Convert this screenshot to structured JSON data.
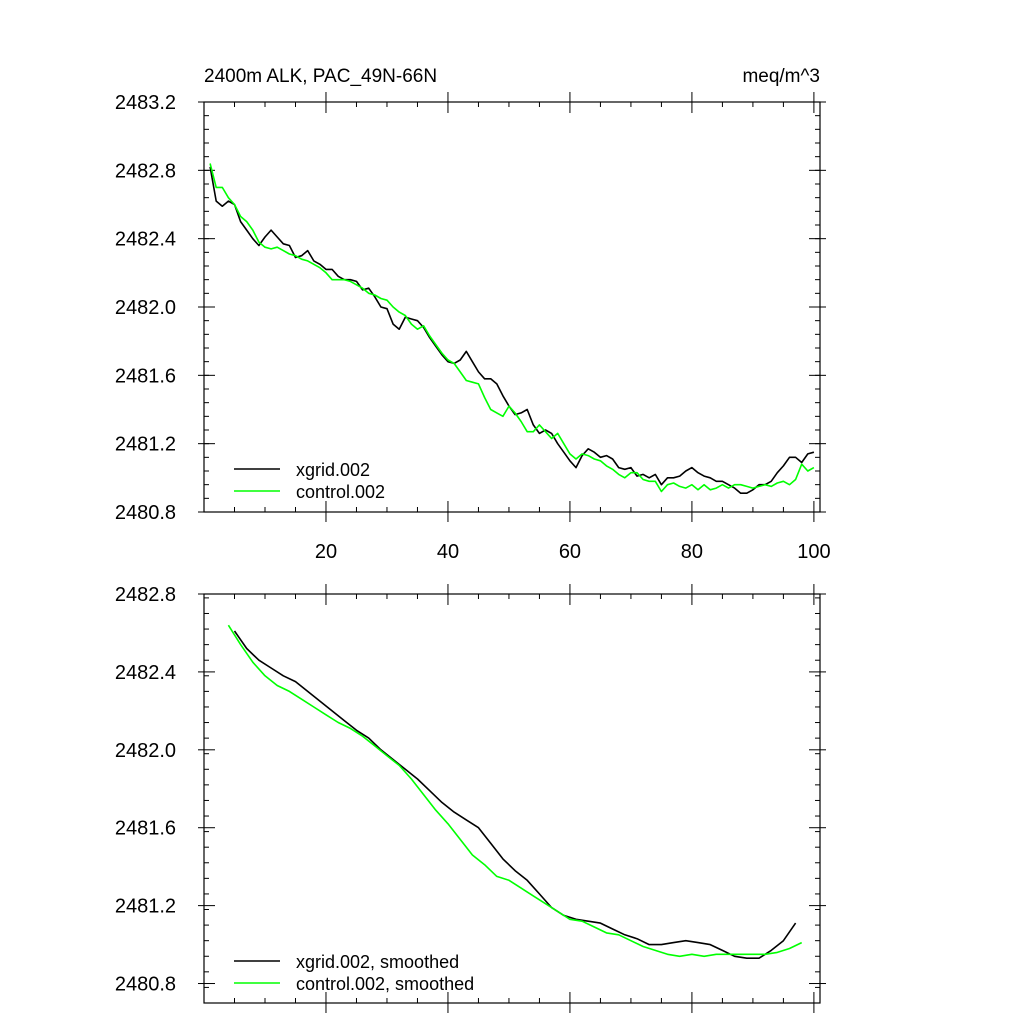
{
  "chart_data": [
    {
      "type": "line",
      "title": "2400m ALK, PAC_49N-66N",
      "units_label": "meq/m^3",
      "xlim": [
        0,
        101
      ],
      "ylim": [
        2480.8,
        2483.2
      ],
      "x_ticks": [
        20,
        40,
        60,
        80,
        100
      ],
      "x_tick_labels": [
        "20",
        "40",
        "60",
        "80",
        "100"
      ],
      "y_ticks": [
        2480.8,
        2481.2,
        2481.6,
        2482.0,
        2482.4,
        2482.8,
        2483.2
      ],
      "y_tick_labels": [
        "2480.8",
        "2481.2",
        "2481.6",
        "2482.0",
        "2482.4",
        "2482.8",
        "2483.2"
      ],
      "legend_position": "bottom-left",
      "series": [
        {
          "name": "xgrid.002",
          "color": "#000000",
          "x": [
            1,
            2,
            3,
            4,
            5,
            6,
            7,
            8,
            9,
            10,
            11,
            12,
            13,
            14,
            15,
            16,
            17,
            18,
            19,
            20,
            21,
            22,
            23,
            24,
            25,
            26,
            27,
            28,
            29,
            30,
            31,
            32,
            33,
            34,
            35,
            36,
            37,
            38,
            39,
            40,
            41,
            42,
            43,
            44,
            45,
            46,
            47,
            48,
            49,
            50,
            51,
            52,
            53,
            54,
            55,
            56,
            57,
            58,
            59,
            60,
            61,
            62,
            63,
            64,
            65,
            66,
            67,
            68,
            69,
            70,
            71,
            72,
            73,
            74,
            75,
            76,
            77,
            78,
            79,
            80,
            81,
            82,
            83,
            84,
            85,
            86,
            87,
            88,
            89,
            90,
            91,
            92,
            93,
            94,
            95,
            96,
            97,
            98,
            99,
            100
          ],
          "values": [
            2482.82,
            2482.62,
            2482.59,
            2482.62,
            2482.6,
            2482.5,
            2482.45,
            2482.4,
            2482.36,
            2482.41,
            2482.45,
            2482.41,
            2482.37,
            2482.36,
            2482.29,
            2482.3,
            2482.33,
            2482.27,
            2482.25,
            2482.22,
            2482.22,
            2482.18,
            2482.16,
            2482.16,
            2482.15,
            2482.1,
            2482.11,
            2482.06,
            2482.0,
            2481.99,
            2481.9,
            2481.87,
            2481.94,
            2481.93,
            2481.92,
            2481.88,
            2481.82,
            2481.77,
            2481.72,
            2481.68,
            2481.67,
            2481.69,
            2481.74,
            2481.68,
            2481.62,
            2481.58,
            2481.58,
            2481.55,
            2481.48,
            2481.42,
            2481.37,
            2481.38,
            2481.4,
            2481.31,
            2481.26,
            2481.28,
            2481.26,
            2481.2,
            2481.15,
            2481.1,
            2481.06,
            2481.13,
            2481.17,
            2481.15,
            2481.12,
            2481.13,
            2481.11,
            2481.06,
            2481.05,
            2481.06,
            2481.01,
            2481.02,
            2481.0,
            2481.02,
            2480.96,
            2481.0,
            2481.0,
            2481.01,
            2481.04,
            2481.06,
            2481.03,
            2481.01,
            2481.0,
            2480.98,
            2480.98,
            2480.96,
            2480.94,
            2480.91,
            2480.91,
            2480.93,
            2480.96,
            2480.96,
            2480.98,
            2481.03,
            2481.07,
            2481.12,
            2481.12,
            2481.09,
            2481.14,
            2481.15
          ]
        },
        {
          "name": "control.002",
          "color": "#00ff00",
          "x": [
            1,
            2,
            3,
            4,
            5,
            6,
            7,
            8,
            9,
            10,
            11,
            12,
            13,
            14,
            15,
            16,
            17,
            18,
            19,
            20,
            21,
            22,
            23,
            24,
            25,
            26,
            27,
            28,
            29,
            30,
            31,
            32,
            33,
            34,
            35,
            36,
            37,
            38,
            39,
            40,
            41,
            42,
            43,
            44,
            45,
            46,
            47,
            48,
            49,
            50,
            51,
            52,
            53,
            54,
            55,
            56,
            57,
            58,
            59,
            60,
            61,
            62,
            63,
            64,
            65,
            66,
            67,
            68,
            69,
            70,
            71,
            72,
            73,
            74,
            75,
            76,
            77,
            78,
            79,
            80,
            81,
            82,
            83,
            84,
            85,
            86,
            87,
            88,
            89,
            90,
            91,
            92,
            93,
            94,
            95,
            96,
            97,
            98,
            99,
            100
          ],
          "values": [
            2482.84,
            2482.7,
            2482.7,
            2482.64,
            2482.6,
            2482.53,
            2482.5,
            2482.45,
            2482.38,
            2482.35,
            2482.34,
            2482.35,
            2482.33,
            2482.31,
            2482.3,
            2482.28,
            2482.27,
            2482.25,
            2482.23,
            2482.2,
            2482.16,
            2482.16,
            2482.16,
            2482.15,
            2482.13,
            2482.11,
            2482.08,
            2482.07,
            2482.05,
            2482.04,
            2482.0,
            2481.97,
            2481.95,
            2481.9,
            2481.87,
            2481.89,
            2481.83,
            2481.78,
            2481.73,
            2481.69,
            2481.67,
            2481.62,
            2481.57,
            2481.56,
            2481.55,
            2481.47,
            2481.4,
            2481.38,
            2481.36,
            2481.42,
            2481.38,
            2481.33,
            2481.27,
            2481.27,
            2481.31,
            2481.27,
            2481.23,
            2481.26,
            2481.2,
            2481.14,
            2481.11,
            2481.14,
            2481.13,
            2481.11,
            2481.1,
            2481.07,
            2481.05,
            2481.02,
            2481.0,
            2481.03,
            2481.03,
            2480.99,
            2480.98,
            2480.98,
            2480.92,
            2480.96,
            2480.97,
            2480.95,
            2480.94,
            2480.96,
            2480.93,
            2480.96,
            2480.93,
            2480.94,
            2480.96,
            2480.94,
            2480.96,
            2480.96,
            2480.95,
            2480.94,
            2480.95,
            2480.96,
            2480.95,
            2480.97,
            2480.98,
            2480.96,
            2480.99,
            2481.08,
            2481.04,
            2481.06
          ]
        }
      ]
    },
    {
      "type": "line",
      "title": "",
      "xlim": [
        0,
        101
      ],
      "ylim": [
        2480.7,
        2482.8
      ],
      "x_ticks": [
        20,
        40,
        60,
        80,
        100
      ],
      "x_tick_labels": [],
      "y_ticks": [
        2480.8,
        2481.2,
        2481.6,
        2482.0,
        2482.4,
        2482.8
      ],
      "y_tick_labels": [
        "2480.8",
        "2481.2",
        "2481.6",
        "2482.0",
        "2482.4",
        "2482.8"
      ],
      "legend_position": "bottom-left",
      "series": [
        {
          "name": "xgrid.002, smoothed",
          "color": "#000000",
          "x": [
            5,
            7,
            9,
            11,
            13,
            15,
            17,
            19,
            21,
            23,
            25,
            27,
            29,
            31,
            33,
            35,
            37,
            39,
            41,
            43,
            45,
            47,
            49,
            51,
            53,
            55,
            57,
            59,
            61,
            63,
            65,
            67,
            69,
            71,
            73,
            75,
            77,
            79,
            81,
            83,
            85,
            87,
            89,
            91,
            93,
            95,
            97
          ],
          "values": [
            2482.61,
            2482.52,
            2482.46,
            2482.42,
            2482.38,
            2482.35,
            2482.3,
            2482.25,
            2482.2,
            2482.15,
            2482.1,
            2482.06,
            2482.0,
            2481.95,
            2481.9,
            2481.85,
            2481.79,
            2481.73,
            2481.68,
            2481.64,
            2481.6,
            2481.52,
            2481.44,
            2481.38,
            2481.33,
            2481.26,
            2481.19,
            2481.15,
            2481.13,
            2481.12,
            2481.11,
            2481.08,
            2481.05,
            2481.03,
            2481.0,
            2481.0,
            2481.01,
            2481.02,
            2481.01,
            2481.0,
            2480.97,
            2480.94,
            2480.93,
            2480.93,
            2480.97,
            2481.02,
            2481.11
          ]
        },
        {
          "name": "control.002, smoothed",
          "color": "#00ff00",
          "x": [
            4,
            6,
            8,
            10,
            12,
            14,
            16,
            18,
            20,
            22,
            24,
            26,
            28,
            30,
            32,
            34,
            36,
            38,
            40,
            42,
            44,
            46,
            48,
            50,
            52,
            54,
            56,
            58,
            60,
            62,
            64,
            66,
            68,
            70,
            72,
            74,
            76,
            78,
            80,
            82,
            84,
            86,
            88,
            90,
            92,
            94,
            96,
            98
          ],
          "values": [
            2482.64,
            2482.54,
            2482.45,
            2482.38,
            2482.33,
            2482.3,
            2482.26,
            2482.22,
            2482.18,
            2482.14,
            2482.11,
            2482.07,
            2482.02,
            2481.97,
            2481.92,
            2481.85,
            2481.77,
            2481.69,
            2481.62,
            2481.54,
            2481.46,
            2481.41,
            2481.35,
            2481.33,
            2481.29,
            2481.25,
            2481.21,
            2481.17,
            2481.13,
            2481.12,
            2481.09,
            2481.06,
            2481.05,
            2481.02,
            2480.99,
            2480.97,
            2480.95,
            2480.94,
            2480.95,
            2480.94,
            2480.95,
            2480.95,
            2480.95,
            2480.95,
            2480.95,
            2480.96,
            2480.98,
            2481.01
          ]
        }
      ]
    }
  ]
}
